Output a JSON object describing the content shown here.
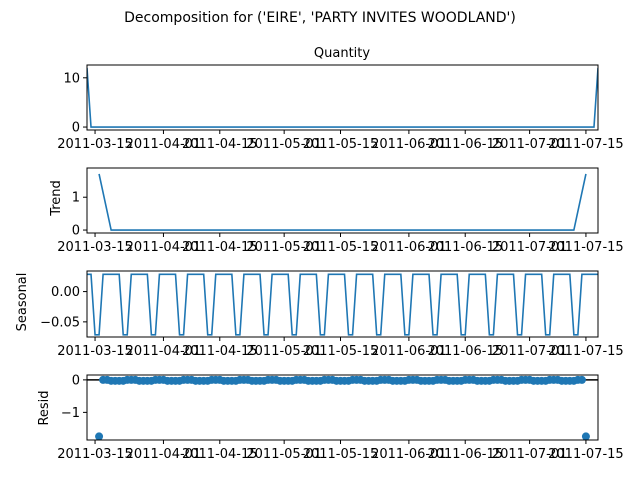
{
  "figure": {
    "suptitle": "Decomposition for ('EIRE', 'PARTY INVITES WOODLAND')"
  },
  "colors": {
    "series": "#1f77b4",
    "axis": "#000000",
    "background": "#ffffff"
  },
  "chart_data": [
    {
      "type": "line",
      "title": "Quantity",
      "ylabel": "",
      "x_range": [
        "2011-03-13",
        "2011-07-18"
      ],
      "x_ticks": [
        "2011-03-15",
        "2011-04-01",
        "2011-04-15",
        "2011-05-01",
        "2011-05-15",
        "2011-06-01",
        "2011-06-15",
        "2011-07-01",
        "2011-07-15"
      ],
      "ylim": [
        -0.6,
        12.6
      ],
      "y_ticks": [
        0,
        10
      ],
      "points": [
        [
          "2011-03-13",
          12
        ],
        [
          "2011-03-14",
          0
        ],
        [
          "2011-07-17",
          0
        ],
        [
          "2011-07-18",
          12
        ]
      ]
    },
    {
      "type": "line",
      "title": "",
      "ylabel": "Trend",
      "x_range": [
        "2011-03-13",
        "2011-07-18"
      ],
      "x_ticks": [
        "2011-03-15",
        "2011-04-01",
        "2011-04-15",
        "2011-05-01",
        "2011-05-15",
        "2011-06-01",
        "2011-06-15",
        "2011-07-01",
        "2011-07-15"
      ],
      "ylim": [
        -0.09,
        1.89
      ],
      "y_ticks": [
        0,
        1
      ],
      "points": [
        [
          "2011-03-16",
          1.71
        ],
        [
          "2011-03-19",
          0
        ],
        [
          "2011-07-12",
          0
        ],
        [
          "2011-07-15",
          1.71
        ]
      ]
    },
    {
      "type": "line",
      "title": "",
      "ylabel": "Seasonal",
      "x_range": [
        "2011-03-13",
        "2011-07-18"
      ],
      "x_ticks": [
        "2011-03-15",
        "2011-04-01",
        "2011-04-15",
        "2011-05-01",
        "2011-05-15",
        "2011-06-01",
        "2011-06-15",
        "2011-07-01",
        "2011-07-15"
      ],
      "ylim": [
        -0.075,
        0.034
      ],
      "y_ticks": [
        0.0,
        -0.05
      ],
      "y_tick_labels": [
        "0.00",
        "−0.05"
      ],
      "period_days": 7,
      "period_start": "2011-03-13",
      "pattern": [
        0.0286,
        0.0286,
        -0.0714,
        -0.0714,
        0.0286,
        0.0286,
        0.0286
      ]
    },
    {
      "type": "scatter",
      "title": "",
      "ylabel": "Resid",
      "x_range": [
        "2011-03-13",
        "2011-07-18"
      ],
      "x_ticks": [
        "2011-03-15",
        "2011-04-01",
        "2011-04-15",
        "2011-05-01",
        "2011-05-15",
        "2011-06-01",
        "2011-06-15",
        "2011-07-01",
        "2011-07-15"
      ],
      "ylim": [
        -1.85,
        0.15
      ],
      "y_ticks": [
        0,
        -1
      ],
      "y_tick_labels": [
        "0",
        "−1"
      ],
      "reference_line": 0,
      "date_range": [
        "2011-03-16",
        "2011-07-15"
      ],
      "typical_value": 0,
      "value_pattern_note": "",
      "outliers": [
        [
          "2011-03-16",
          -1.74
        ],
        [
          "2011-07-15",
          -1.74
        ]
      ],
      "low_points_pattern": [
        0.0,
        0.0,
        0.0,
        -0.03,
        -0.03,
        -0.03,
        -0.03
      ]
    }
  ]
}
